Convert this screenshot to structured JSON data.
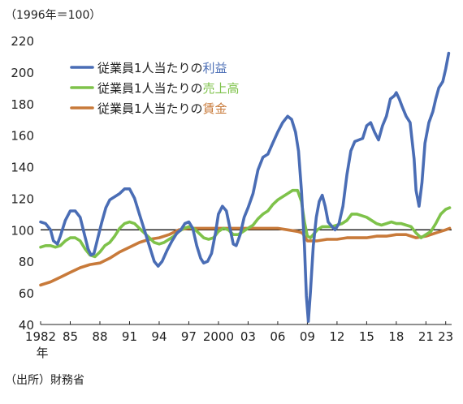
{
  "unit_label": "（1996年＝100）",
  "source": "（出所）財務省",
  "chart_data": {
    "type": "line",
    "title": "",
    "xlabel": "",
    "ylabel": "",
    "xlim": [
      1982,
      2023.6
    ],
    "ylim": [
      40,
      220
    ],
    "yticks": [
      40,
      60,
      80,
      100,
      120,
      140,
      160,
      180,
      200,
      220
    ],
    "xticks": [
      {
        "value": 1982,
        "label": "1982"
      },
      {
        "value": 1985,
        "label": "85"
      },
      {
        "value": 1988,
        "label": "88"
      },
      {
        "value": 1991,
        "label": "91"
      },
      {
        "value": 1994,
        "label": "94"
      },
      {
        "value": 1997,
        "label": "97"
      },
      {
        "value": 2000,
        "label": "2000"
      },
      {
        "value": 2003,
        "label": "03"
      },
      {
        "value": 2006,
        "label": "06"
      },
      {
        "value": 2009,
        "label": "09"
      },
      {
        "value": 2012,
        "label": "12"
      },
      {
        "value": 2015,
        "label": "15"
      },
      {
        "value": 2018,
        "label": "18"
      },
      {
        "value": 2021,
        "label": "21"
      },
      {
        "value": 2023,
        "label": "23"
      }
    ],
    "x_unit_label": "年",
    "reference_line": 100,
    "grid": false,
    "legend_position": "top-left",
    "series": [
      {
        "name": "従業員1人当たりの利益",
        "legend_prefix": "従業員1人当たりの",
        "legend_highlight": "利益",
        "color": "#4a6db5",
        "points": [
          [
            1982.0,
            105
          ],
          [
            1982.5,
            104
          ],
          [
            1983.0,
            100
          ],
          [
            1983.3,
            93
          ],
          [
            1983.7,
            91
          ],
          [
            1984.0,
            96
          ],
          [
            1984.5,
            106
          ],
          [
            1985.0,
            112
          ],
          [
            1985.5,
            112
          ],
          [
            1986.0,
            108
          ],
          [
            1986.4,
            98
          ],
          [
            1986.8,
            88
          ],
          [
            1987.1,
            84
          ],
          [
            1987.4,
            85
          ],
          [
            1987.8,
            95
          ],
          [
            1988.2,
            105
          ],
          [
            1988.6,
            114
          ],
          [
            1989.0,
            119
          ],
          [
            1989.5,
            121
          ],
          [
            1990.0,
            123
          ],
          [
            1990.5,
            126
          ],
          [
            1991.0,
            126
          ],
          [
            1991.5,
            120
          ],
          [
            1992.0,
            110
          ],
          [
            1992.5,
            100
          ],
          [
            1993.0,
            90
          ],
          [
            1993.5,
            80
          ],
          [
            1993.9,
            77
          ],
          [
            1994.3,
            80
          ],
          [
            1994.8,
            87
          ],
          [
            1995.3,
            93
          ],
          [
            1995.8,
            98
          ],
          [
            1996.2,
            100
          ],
          [
            1996.6,
            104
          ],
          [
            1997.0,
            105
          ],
          [
            1997.4,
            101
          ],
          [
            1997.8,
            90
          ],
          [
            1998.2,
            82
          ],
          [
            1998.5,
            79
          ],
          [
            1998.9,
            80
          ],
          [
            1999.3,
            85
          ],
          [
            1999.7,
            98
          ],
          [
            2000.0,
            110
          ],
          [
            2000.4,
            115
          ],
          [
            2000.8,
            112
          ],
          [
            2001.2,
            100
          ],
          [
            2001.5,
            91
          ],
          [
            2001.8,
            90
          ],
          [
            2002.2,
            97
          ],
          [
            2002.6,
            108
          ],
          [
            2003.0,
            114
          ],
          [
            2003.5,
            123
          ],
          [
            2004.0,
            138
          ],
          [
            2004.5,
            146
          ],
          [
            2005.0,
            148
          ],
          [
            2005.5,
            155
          ],
          [
            2006.0,
            162
          ],
          [
            2006.5,
            168
          ],
          [
            2007.0,
            172
          ],
          [
            2007.4,
            170
          ],
          [
            2007.8,
            162
          ],
          [
            2008.1,
            150
          ],
          [
            2008.4,
            125
          ],
          [
            2008.7,
            90
          ],
          [
            2008.9,
            58
          ],
          [
            2009.1,
            42
          ],
          [
            2009.3,
            60
          ],
          [
            2009.6,
            90
          ],
          [
            2009.9,
            108
          ],
          [
            2010.2,
            118
          ],
          [
            2010.5,
            122
          ],
          [
            2010.8,
            115
          ],
          [
            2011.1,
            105
          ],
          [
            2011.5,
            102
          ],
          [
            2011.8,
            100
          ],
          [
            2012.2,
            104
          ],
          [
            2012.6,
            115
          ],
          [
            2013.0,
            135
          ],
          [
            2013.4,
            150
          ],
          [
            2013.8,
            156
          ],
          [
            2014.2,
            157
          ],
          [
            2014.6,
            158
          ],
          [
            2015.0,
            166
          ],
          [
            2015.4,
            168
          ],
          [
            2015.8,
            162
          ],
          [
            2016.2,
            157
          ],
          [
            2016.6,
            166
          ],
          [
            2017.0,
            172
          ],
          [
            2017.4,
            183
          ],
          [
            2017.8,
            185
          ],
          [
            2018.0,
            187
          ],
          [
            2018.3,
            183
          ],
          [
            2018.6,
            178
          ],
          [
            2019.0,
            172
          ],
          [
            2019.4,
            168
          ],
          [
            2019.8,
            145
          ],
          [
            2020.0,
            125
          ],
          [
            2020.3,
            115
          ],
          [
            2020.6,
            130
          ],
          [
            2020.9,
            155
          ],
          [
            2021.3,
            168
          ],
          [
            2021.7,
            175
          ],
          [
            2022.0,
            183
          ],
          [
            2022.3,
            190
          ],
          [
            2022.7,
            194
          ],
          [
            2023.0,
            202
          ],
          [
            2023.3,
            212
          ]
        ]
      },
      {
        "name": "従業員1人当たりの売上高",
        "legend_prefix": "従業員1人当たりの",
        "legend_highlight": "売上高",
        "color": "#7ec24a",
        "points": [
          [
            1982.0,
            89
          ],
          [
            1982.5,
            90
          ],
          [
            1983.0,
            90
          ],
          [
            1983.5,
            89
          ],
          [
            1984.0,
            90
          ],
          [
            1984.5,
            93
          ],
          [
            1985.0,
            95
          ],
          [
            1985.5,
            95
          ],
          [
            1986.0,
            93
          ],
          [
            1986.5,
            88
          ],
          [
            1987.0,
            84
          ],
          [
            1987.5,
            83
          ],
          [
            1988.0,
            86
          ],
          [
            1988.5,
            90
          ],
          [
            1989.0,
            92
          ],
          [
            1989.5,
            96
          ],
          [
            1990.0,
            101
          ],
          [
            1990.5,
            104
          ],
          [
            1991.0,
            105
          ],
          [
            1991.5,
            104
          ],
          [
            1992.0,
            101
          ],
          [
            1992.5,
            98
          ],
          [
            1993.0,
            95
          ],
          [
            1993.5,
            92
          ],
          [
            1994.0,
            91
          ],
          [
            1994.5,
            92
          ],
          [
            1995.0,
            94
          ],
          [
            1995.5,
            96
          ],
          [
            1996.0,
            99
          ],
          [
            1996.5,
            101
          ],
          [
            1997.0,
            102
          ],
          [
            1997.5,
            101
          ],
          [
            1998.0,
            98
          ],
          [
            1998.5,
            95
          ],
          [
            1999.0,
            94
          ],
          [
            1999.5,
            95
          ],
          [
            2000.0,
            99
          ],
          [
            2000.5,
            101
          ],
          [
            2001.0,
            100
          ],
          [
            2001.5,
            97
          ],
          [
            2002.0,
            97
          ],
          [
            2002.5,
            99
          ],
          [
            2003.0,
            101
          ],
          [
            2003.5,
            103
          ],
          [
            2004.0,
            107
          ],
          [
            2004.5,
            110
          ],
          [
            2005.0,
            112
          ],
          [
            2005.5,
            116
          ],
          [
            2006.0,
            119
          ],
          [
            2006.5,
            121
          ],
          [
            2007.0,
            123
          ],
          [
            2007.5,
            125
          ],
          [
            2008.0,
            125
          ],
          [
            2008.4,
            118
          ],
          [
            2008.7,
            105
          ],
          [
            2009.0,
            96
          ],
          [
            2009.3,
            95
          ],
          [
            2009.6,
            97
          ],
          [
            2010.0,
            100
          ],
          [
            2010.5,
            102
          ],
          [
            2011.0,
            102
          ],
          [
            2011.5,
            102
          ],
          [
            2012.0,
            103
          ],
          [
            2012.5,
            104
          ],
          [
            2013.0,
            106
          ],
          [
            2013.5,
            110
          ],
          [
            2014.0,
            110
          ],
          [
            2014.5,
            109
          ],
          [
            2015.0,
            108
          ],
          [
            2015.5,
            106
          ],
          [
            2016.0,
            104
          ],
          [
            2016.5,
            103
          ],
          [
            2017.0,
            104
          ],
          [
            2017.5,
            105
          ],
          [
            2018.0,
            104
          ],
          [
            2018.5,
            104
          ],
          [
            2019.0,
            103
          ],
          [
            2019.5,
            102
          ],
          [
            2020.0,
            98
          ],
          [
            2020.5,
            95
          ],
          [
            2021.0,
            97
          ],
          [
            2021.5,
            99
          ],
          [
            2022.0,
            104
          ],
          [
            2022.5,
            110
          ],
          [
            2023.0,
            113
          ],
          [
            2023.4,
            114
          ]
        ]
      },
      {
        "name": "従業員1人当たりの賃金",
        "legend_prefix": "従業員1人当たりの",
        "legend_highlight": "賃金",
        "color": "#c87a3a",
        "points": [
          [
            1982.0,
            65
          ],
          [
            1983.0,
            67
          ],
          [
            1984.0,
            70
          ],
          [
            1985.0,
            73
          ],
          [
            1986.0,
            76
          ],
          [
            1987.0,
            78
          ],
          [
            1988.0,
            79
          ],
          [
            1989.0,
            82
          ],
          [
            1990.0,
            86
          ],
          [
            1991.0,
            89
          ],
          [
            1992.0,
            92
          ],
          [
            1993.0,
            94
          ],
          [
            1994.0,
            95
          ],
          [
            1995.0,
            97
          ],
          [
            1996.0,
            100
          ],
          [
            1997.0,
            101
          ],
          [
            1998.0,
            101
          ],
          [
            1999.0,
            101
          ],
          [
            2000.0,
            101
          ],
          [
            2001.0,
            101
          ],
          [
            2002.0,
            101
          ],
          [
            2003.0,
            101
          ],
          [
            2004.0,
            101
          ],
          [
            2005.0,
            101
          ],
          [
            2006.0,
            101
          ],
          [
            2007.0,
            100
          ],
          [
            2008.0,
            99
          ],
          [
            2008.5,
            98
          ],
          [
            2009.0,
            93
          ],
          [
            2009.5,
            93
          ],
          [
            2010.0,
            93
          ],
          [
            2011.0,
            94
          ],
          [
            2012.0,
            94
          ],
          [
            2013.0,
            95
          ],
          [
            2014.0,
            95
          ],
          [
            2015.0,
            95
          ],
          [
            2016.0,
            96
          ],
          [
            2017.0,
            96
          ],
          [
            2018.0,
            97
          ],
          [
            2019.0,
            97
          ],
          [
            2020.0,
            95
          ],
          [
            2021.0,
            96
          ],
          [
            2022.0,
            98
          ],
          [
            2023.0,
            100
          ],
          [
            2023.4,
            101
          ]
        ]
      }
    ]
  }
}
